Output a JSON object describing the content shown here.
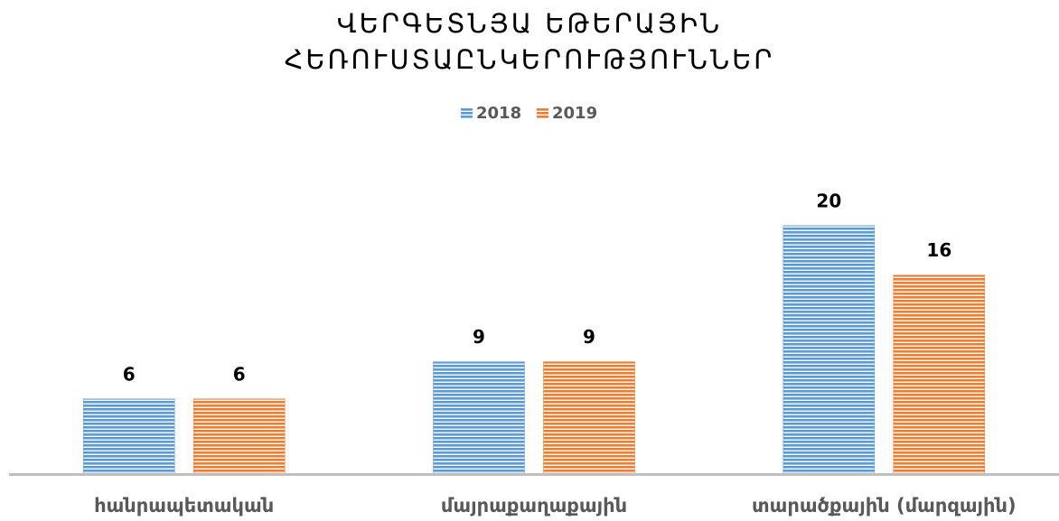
{
  "chart_data": {
    "type": "bar",
    "title": [
      "ՎԵՐԳԵՏՆՅԱ ԵԹԵՐԱՅԻՆ",
      "ՀԵՌՈՒՍՏԱԸՆԿԵՐՈՒԹՅՈՒՆՆԵՐ"
    ],
    "categories": [
      "հանրապետական",
      "մայրաքաղաքային",
      "տարածքային (մարզային)"
    ],
    "series": [
      {
        "name": "2018",
        "color": "#5b9bd5",
        "values": [
          6,
          9,
          20
        ]
      },
      {
        "name": "2019",
        "color": "#ed7d31",
        "values": [
          6,
          9,
          16
        ]
      }
    ],
    "ylim": [
      0,
      24
    ],
    "legend": "top"
  }
}
